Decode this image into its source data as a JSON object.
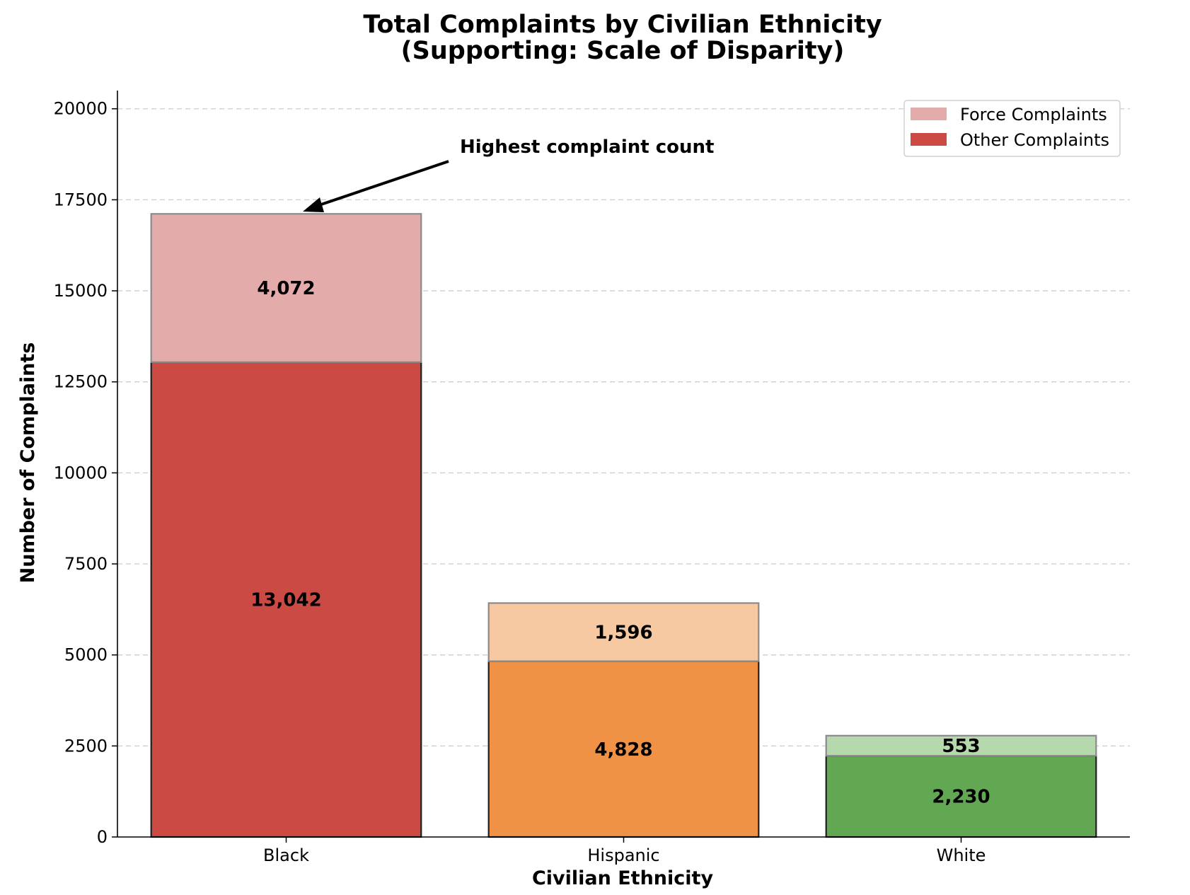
{
  "chart_data": {
    "type": "bar",
    "stacked": true,
    "title_line1": "Total Complaints by Civilian Ethnicity",
    "title_line2": "(Supporting: Scale of Disparity)",
    "xlabel": "Civilian Ethnicity",
    "ylabel": "Number of Complaints",
    "categories": [
      "Black",
      "Hispanic",
      "White"
    ],
    "series": [
      {
        "name": "Other Complaints",
        "values": [
          13042,
          4828,
          2230
        ],
        "labels": [
          "13,042",
          "4,828",
          "2,230"
        ],
        "colors": [
          "#cb4a44",
          "#f09245",
          "#62a853"
        ]
      },
      {
        "name": "Force Complaints",
        "values": [
          4072,
          1596,
          553
        ],
        "labels": [
          "4,072",
          "1,596",
          "553"
        ],
        "colors": [
          "#e4abab",
          "#f7c9a2",
          "#b5d9ad"
        ]
      }
    ],
    "ylim": [
      0,
      20500
    ],
    "yticks": [
      0,
      2500,
      5000,
      7500,
      10000,
      12500,
      15000,
      17500,
      20000
    ],
    "ytick_labels": [
      "0",
      "2500",
      "5000",
      "7500",
      "10000",
      "12500",
      "15000",
      "17500",
      "20000"
    ],
    "grid": "y-dashed",
    "legend": {
      "position": "top-right",
      "entries": [
        {
          "label": "Force Complaints",
          "color": "#e4abab"
        },
        {
          "label": "Other Complaints",
          "color": "#cb4a44"
        }
      ]
    },
    "annotation": {
      "text": "Highest complaint count",
      "target_category": "Black"
    }
  }
}
